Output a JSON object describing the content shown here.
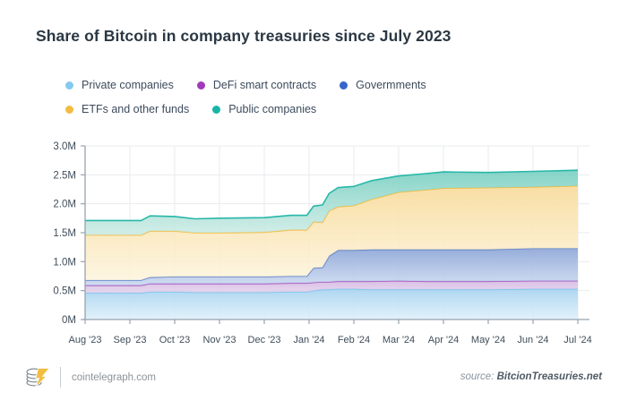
{
  "title": "Share of Bitcoin in company treasuries since July 2023",
  "legend": {
    "items": [
      {
        "label": "Private companies",
        "color": "#85C9F0"
      },
      {
        "label": "DeFi smart contracts",
        "color": "#A239BC"
      },
      {
        "label": "Govermments",
        "color": "#3765C8"
      },
      {
        "label": "ETFs and other funds",
        "color": "#F2BC42"
      },
      {
        "label": "Public companies",
        "color": "#17B5A6"
      }
    ]
  },
  "chart_data": {
    "type": "area",
    "stacked": true,
    "title": "Share of Bitcoin in company treasuries since July 2023",
    "categories": [
      "Aug '23",
      "Sep '23",
      "Oct '23",
      "Nov '23",
      "Dec '23",
      "Jan '24",
      "Feb '24",
      "Mar '24",
      "Apr '24",
      "May '24",
      "Jun '24",
      "Jul '24"
    ],
    "x_unit": "month index: 0 = Aug '23 ... 11 = Jul '24 (fractional points capture intra-month steps)",
    "x": [
      0,
      1.25,
      1.45,
      2,
      2.45,
      3,
      4,
      4.6,
      4.95,
      5.1,
      5.3,
      5.45,
      5.65,
      6,
      6.4,
      7,
      7.6,
      8,
      9,
      10,
      11
    ],
    "series": [
      {
        "name": "Private companies",
        "unit": "M BTC",
        "line_color": "#7CC4EE",
        "fill_top": "#A9D4F0",
        "fill_bottom": "#DDEFFA",
        "values": [
          0.46,
          0.46,
          0.48,
          0.48,
          0.47,
          0.47,
          0.47,
          0.48,
          0.48,
          0.5,
          0.52,
          0.52,
          0.53,
          0.53,
          0.52,
          0.52,
          0.52,
          0.52,
          0.52,
          0.53,
          0.53
        ]
      },
      {
        "name": "DeFi smart contracts",
        "unit": "M BTC",
        "line_color": "#A75BC4",
        "fill_top": "#D7BBE3",
        "fill_bottom": "#E4D2EC",
        "values": [
          0.13,
          0.13,
          0.14,
          0.14,
          0.15,
          0.15,
          0.15,
          0.15,
          0.15,
          0.14,
          0.13,
          0.13,
          0.13,
          0.13,
          0.14,
          0.15,
          0.14,
          0.14,
          0.14,
          0.14,
          0.14
        ]
      },
      {
        "name": "Govermments",
        "unit": "M BTC",
        "line_color": "#5E82C8",
        "fill_top": "#91A9D8",
        "fill_bottom": "#C7D6EF",
        "values": [
          0.09,
          0.09,
          0.11,
          0.12,
          0.12,
          0.12,
          0.12,
          0.12,
          0.12,
          0.25,
          0.25,
          0.45,
          0.54,
          0.54,
          0.55,
          0.54,
          0.55,
          0.55,
          0.55,
          0.56,
          0.56
        ]
      },
      {
        "name": "ETFs and other funds",
        "unit": "M BTC",
        "line_color": "#F2BC42",
        "fill_top": "#F8DC9E",
        "fill_bottom": "#FDF4DC",
        "values": [
          0.78,
          0.78,
          0.8,
          0.79,
          0.76,
          0.76,
          0.77,
          0.8,
          0.8,
          0.8,
          0.78,
          0.78,
          0.75,
          0.77,
          0.87,
          0.99,
          1.03,
          1.06,
          1.07,
          1.06,
          1.08
        ]
      },
      {
        "name": "Public companies",
        "unit": "M BTC",
        "line_color": "#27B7A8",
        "fill_top": "#7ED1C4",
        "fill_bottom": "#CBEBE4",
        "values": [
          0.25,
          0.25,
          0.26,
          0.25,
          0.24,
          0.25,
          0.25,
          0.25,
          0.25,
          0.27,
          0.3,
          0.3,
          0.33,
          0.33,
          0.32,
          0.28,
          0.28,
          0.28,
          0.26,
          0.27,
          0.27
        ]
      }
    ],
    "ylim": [
      0,
      3.0
    ],
    "y_ticks": [
      "0M",
      "0.5M",
      "1.0M",
      "1.5M",
      "2.0M",
      "2.5M",
      "3.0M"
    ],
    "grid": true,
    "legend_position": "top",
    "colors": {
      "grid": "#E8EBEE",
      "axis": "#97A2AE",
      "tick_label": "#3F4D5A"
    }
  },
  "footer": {
    "site": "cointelegraph.com",
    "source_label": "source:",
    "source_name": "BitcionTreasuries.net"
  }
}
